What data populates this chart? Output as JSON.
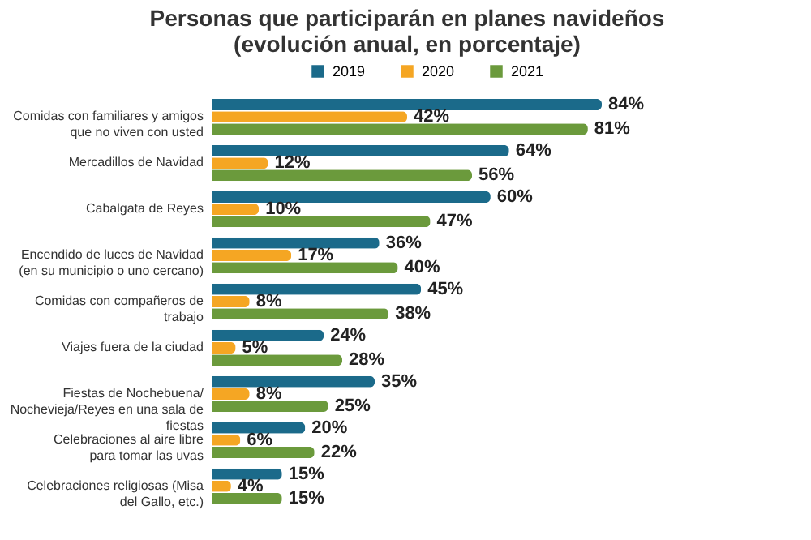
{
  "chart_data": {
    "type": "bar",
    "orientation": "horizontal",
    "title": "Personas que participarán en planes navideños\n(evolución anual, en porcentaje)",
    "categories": [
      "Comidas con familiares y amigos que no viven con usted",
      "Mercadillos de Navidad",
      "Cabalgata de Reyes",
      "Encendido de luces de Navidad (en su municipio o uno cercano)",
      "Comidas con compañeros de trabajo",
      "Viajes fuera de la ciudad",
      "Fiestas de Nochebuena/ Nochevieja/Reyes en una sala de fiestas",
      "Celebraciones al aire libre para tomar las uvas",
      "Celebraciones religiosas (Misa del Gallo, etc.)"
    ],
    "series": [
      {
        "name": "2019",
        "color": "#1b6a8a",
        "values": [
          84,
          64,
          60,
          36,
          45,
          24,
          35,
          20,
          15
        ],
        "value_labels": [
          "84%",
          "64%",
          "60%",
          "36%",
          "45%",
          "24%",
          "35%",
          "20%",
          "15%"
        ]
      },
      {
        "name": "2020",
        "color": "#f5a623",
        "values": [
          42,
          12,
          10,
          17,
          8,
          5,
          8,
          6,
          4
        ],
        "value_labels": [
          "42%",
          "12%",
          "10%",
          "17%",
          "8%",
          "5%",
          "8%",
          "6%",
          "4%"
        ]
      },
      {
        "name": "2021",
        "color": "#6b9a3c",
        "values": [
          81,
          56,
          47,
          40,
          38,
          28,
          25,
          22,
          15
        ],
        "value_labels": [
          "81%",
          "56%",
          "47%",
          "40%",
          "38%",
          "28%",
          "25%",
          "22%",
          "15%"
        ]
      }
    ],
    "legend": "top right",
    "grid": false
  }
}
